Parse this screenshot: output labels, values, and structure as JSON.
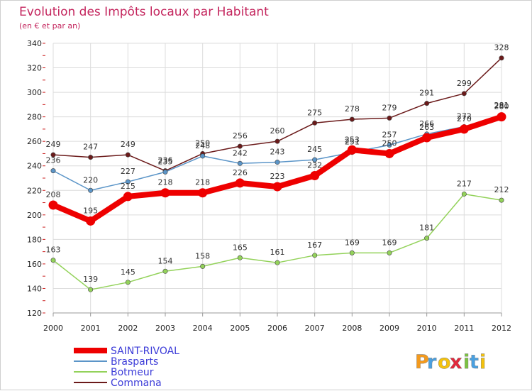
{
  "chart_data": {
    "type": "line",
    "title": "Evolution des Impôts locaux par Habitant",
    "subtitle": "(en € et par an)",
    "xlabel": "",
    "ylabel": "",
    "ylim": [
      120,
      340
    ],
    "yticks": [
      120,
      140,
      160,
      180,
      200,
      220,
      240,
      260,
      280,
      300,
      320,
      340
    ],
    "categories": [
      "2000",
      "2001",
      "2002",
      "2003",
      "2004",
      "2005",
      "2006",
      "2007",
      "2008",
      "2009",
      "2010",
      "2011",
      "2012"
    ],
    "legend_position": "bottom-left",
    "series": [
      {
        "name": "Commana",
        "color": "#6b1a1a",
        "values": [
          249,
          247,
          249,
          236,
          250,
          256,
          260,
          275,
          278,
          279,
          291,
          299,
          328
        ]
      },
      {
        "name": "Botmeur",
        "color": "#93d25a",
        "values": [
          163,
          139,
          145,
          154,
          158,
          165,
          161,
          167,
          169,
          169,
          181,
          217,
          212
        ]
      },
      {
        "name": "Brasparts",
        "color": "#5b95c8",
        "values": [
          236,
          220,
          227,
          235,
          248,
          242,
          243,
          245,
          251,
          257,
          266,
          272,
          281
        ]
      },
      {
        "name": "SAINT-RIVOAL",
        "color": "#ee0000",
        "values": [
          208,
          195,
          215,
          218,
          218,
          226,
          223,
          232,
          253,
          250,
          263,
          270,
          280
        ]
      }
    ]
  },
  "branding": {
    "logo_letters": [
      "P",
      "r",
      "o",
      "x",
      "i",
      "t",
      "i"
    ],
    "logo_colors": [
      "#f39a1e",
      "#4aa0e0",
      "#f4c20d",
      "#e2283c",
      "#7cc242",
      "#4aa0e0",
      "#f4c20d"
    ]
  }
}
